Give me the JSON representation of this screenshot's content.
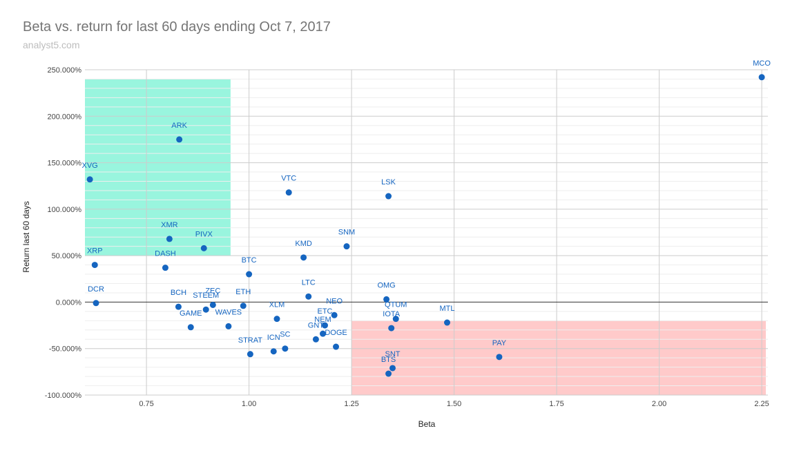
{
  "chart_data": {
    "type": "scatter",
    "title": "Beta vs. return for last 60 days ending Oct 7, 2017",
    "subtitle": "analyst5.com",
    "xlabel": "Beta",
    "ylabel": "Return last 60 days",
    "xlim": [
      0.6,
      2.27
    ],
    "ylim": [
      -100,
      250
    ],
    "xticks": [
      {
        "value": 0.75,
        "label": "0.75"
      },
      {
        "value": 1.0,
        "label": "1.00"
      },
      {
        "value": 1.25,
        "label": "1.25"
      },
      {
        "value": 1.5,
        "label": "1.50"
      },
      {
        "value": 1.75,
        "label": "1.75"
      },
      {
        "value": 2.0,
        "label": "2.00"
      },
      {
        "value": 2.25,
        "label": "2.25"
      }
    ],
    "yticks": [
      {
        "value": -100,
        "label": "-100.000%"
      },
      {
        "value": -50,
        "label": "-50.000%"
      },
      {
        "value": 0,
        "label": "0.000%"
      },
      {
        "value": 50,
        "label": "50.000%"
      },
      {
        "value": 100,
        "label": "100.000%"
      },
      {
        "value": 150,
        "label": "150.000%"
      },
      {
        "value": 200,
        "label": "200.000%"
      },
      {
        "value": 250,
        "label": "250.000%"
      }
    ],
    "grid": true,
    "regions": [
      {
        "x0": 0.6,
        "x1": 0.955,
        "y0": 50,
        "y1": 240,
        "color": "#1de9b6"
      },
      {
        "x0": 1.25,
        "x1": 2.26,
        "y0": -100,
        "y1": -20,
        "color": "#ff8a8a"
      }
    ],
    "point_color": "#1565c0",
    "points": [
      {
        "label": "MCO",
        "x": 2.25,
        "y": 242
      },
      {
        "label": "ARK",
        "x": 0.83,
        "y": 175
      },
      {
        "label": "XVG",
        "x": 0.612,
        "y": 132
      },
      {
        "label": "VTC",
        "x": 1.097,
        "y": 118
      },
      {
        "label": "LSK",
        "x": 1.34,
        "y": 114
      },
      {
        "label": "XMR",
        "x": 0.806,
        "y": 68
      },
      {
        "label": "PIVX",
        "x": 0.89,
        "y": 58
      },
      {
        "label": "SNM",
        "x": 1.238,
        "y": 60
      },
      {
        "label": "KMD",
        "x": 1.133,
        "y": 48
      },
      {
        "label": "XRP",
        "x": 0.624,
        "y": 40
      },
      {
        "label": "DASH",
        "x": 0.796,
        "y": 37
      },
      {
        "label": "BTC",
        "x": 1.0,
        "y": 30
      },
      {
        "label": "LTC",
        "x": 1.145,
        "y": 6
      },
      {
        "label": "OMG",
        "x": 1.335,
        "y": 3
      },
      {
        "label": "DCR",
        "x": 0.627,
        "y": -1
      },
      {
        "label": "ZEC",
        "x": 0.912,
        "y": -3
      },
      {
        "label": "BCH",
        "x": 0.828,
        "y": -5
      },
      {
        "label": "ETH",
        "x": 0.986,
        "y": -4
      },
      {
        "label": "STEEM",
        "x": 0.895,
        "y": -8
      },
      {
        "label": "NEO",
        "x": 1.208,
        "y": -14
      },
      {
        "label": "QTUM",
        "x": 1.358,
        "y": -18
      },
      {
        "label": "XLM",
        "x": 1.068,
        "y": -18
      },
      {
        "label": "MTL",
        "x": 1.483,
        "y": -22
      },
      {
        "label": "ETC",
        "x": 1.185,
        "y": -25
      },
      {
        "label": "GAME",
        "x": 0.858,
        "y": -27
      },
      {
        "label": "WAVES",
        "x": 0.95,
        "y": -26
      },
      {
        "label": "IOTA",
        "x": 1.347,
        "y": -28
      },
      {
        "label": "NEM",
        "x": 1.18,
        "y": -34
      },
      {
        "label": "GNT",
        "x": 1.163,
        "y": -40
      },
      {
        "label": "DOGE",
        "x": 1.212,
        "y": -48
      },
      {
        "label": "SC",
        "x": 1.088,
        "y": -50
      },
      {
        "label": "ICN",
        "x": 1.06,
        "y": -53
      },
      {
        "label": "STRAT",
        "x": 1.003,
        "y": -56
      },
      {
        "label": "PAY",
        "x": 1.61,
        "y": -59
      },
      {
        "label": "SNT",
        "x": 1.35,
        "y": -71
      },
      {
        "label": "BTS",
        "x": 1.34,
        "y": -77
      }
    ]
  }
}
